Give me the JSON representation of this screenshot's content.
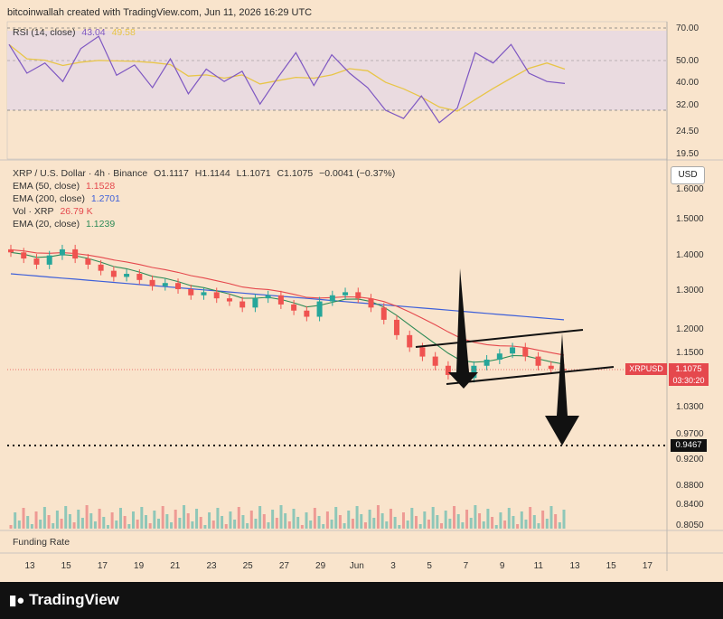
{
  "header": {
    "text": "bitcoinwallah created with TradingView.com, Jun 11, 2026 16:29 UTC"
  },
  "rsi_legend": {
    "label": "RSI (14, close)",
    "value": "43.04",
    "ma_value": "49.58"
  },
  "price_legend": {
    "symbol": "XRP / U.S. Dollar · 4h · Binance",
    "o": "O1.1117",
    "h": "H1.1144",
    "l": "L1.1071",
    "c": "C1.1075",
    "chg": "−0.0041 (−0.37%)",
    "ema50_label": "EMA (50, close)",
    "ema50_value": "1.1528",
    "ema200_label": "EMA (200, close)",
    "ema200_value": "1.2701",
    "vol_label": "Vol · XRP",
    "vol_value": "26.79 K",
    "ema20_label": "EMA (20, close)",
    "ema20_value": "1.1239"
  },
  "currency_button": "USD",
  "funding_label": "Funding Rate",
  "price_tag": {
    "symbol": "XRPUSD",
    "price": "1.1075",
    "countdown": "03:30:20"
  },
  "target_tag": "0.9467",
  "brand": "TradingView",
  "colors": {
    "background": "#f9e4cc",
    "ema50": "#e5484d",
    "ema200": "#3d5fd9",
    "ema20": "#2e8b57",
    "rsi": "#7e57c2",
    "rsi_ma": "#e8c547",
    "up": "#26a69a",
    "down": "#ef5350"
  },
  "chart_data": [
    {
      "type": "line",
      "name": "RSI",
      "y_ticks": [
        "70.00",
        "50.00",
        "40.00",
        "32.00",
        "24.50",
        "19.50"
      ],
      "bands": [
        70,
        30
      ],
      "x": [
        0,
        2,
        4,
        6,
        8,
        10,
        12,
        14,
        16,
        18,
        20,
        22,
        24,
        26,
        28,
        30,
        32,
        34,
        36,
        38,
        40,
        42,
        44,
        46,
        48,
        50,
        52,
        54,
        56,
        58,
        60,
        62
      ],
      "values": [
        62,
        48,
        53,
        44,
        60,
        66,
        47,
        52,
        41,
        55,
        38,
        50,
        44,
        49,
        33,
        46,
        58,
        42,
        57,
        48,
        41,
        30,
        26,
        37,
        24,
        31,
        58,
        53,
        62,
        48,
        44,
        43
      ]
    },
    {
      "type": "candlestick",
      "x_labels": [
        "13",
        "15",
        "17",
        "19",
        "21",
        "23",
        "25",
        "27",
        "29",
        "Jun",
        "3",
        "5",
        "7",
        "9",
        "11",
        "13",
        "15",
        "17"
      ],
      "y_ticks": [
        "1.6000",
        "1.5000",
        "1.4000",
        "1.3000",
        "1.2000",
        "1.1500",
        "1.1000",
        "1.0300",
        "0.9700",
        "0.9200",
        "0.8800",
        "0.8400",
        "0.8050"
      ],
      "close_series": [
        1.49,
        1.47,
        1.45,
        1.48,
        1.5,
        1.47,
        1.45,
        1.43,
        1.41,
        1.42,
        1.4,
        1.38,
        1.39,
        1.37,
        1.35,
        1.36,
        1.34,
        1.33,
        1.31,
        1.34,
        1.35,
        1.32,
        1.3,
        1.28,
        1.33,
        1.35,
        1.36,
        1.34,
        1.31,
        1.27,
        1.22,
        1.18,
        1.15,
        1.12,
        1.09,
        1.08,
        1.12,
        1.14,
        1.16,
        1.18,
        1.15,
        1.12,
        1.11,
        1.1075
      ],
      "ema20_last": 1.1239,
      "ema50_last": 1.1528,
      "ema200_last": 1.2701,
      "volume_last": "26.79K",
      "current_price": 1.1075,
      "target_level": 0.9467
    }
  ]
}
